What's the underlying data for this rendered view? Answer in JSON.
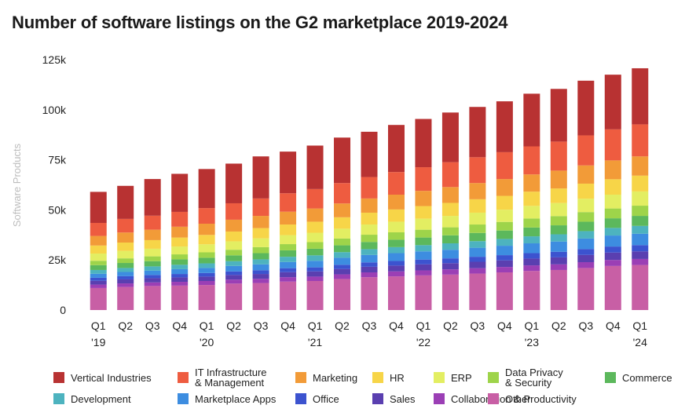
{
  "title": "Number of software listings on the G2 marketplace 2019-2024",
  "chart_data": {
    "type": "bar",
    "stacked": true,
    "ylabel": "Software Products",
    "ylim": [
      0,
      125000
    ],
    "yticks": [
      0,
      25000,
      50000,
      75000,
      100000,
      125000
    ],
    "ytick_labels": [
      "0",
      "25k",
      "50k",
      "75k",
      "100k",
      "125k"
    ],
    "grid": false,
    "legend_position": "bottom",
    "categories": [
      "Q1 '19",
      "Q2",
      "Q3",
      "Q4",
      "Q1 '20",
      "Q2",
      "Q3",
      "Q4",
      "Q1 '21",
      "Q2",
      "Q3",
      "Q4",
      "Q1 '22",
      "Q2",
      "Q3",
      "Q4",
      "Q1 '23",
      "Q2",
      "Q3",
      "Q4",
      "Q1 '24"
    ],
    "category_labels": [
      {
        "q": "Q1",
        "y": "'19"
      },
      {
        "q": "Q2",
        "y": ""
      },
      {
        "q": "Q3",
        "y": ""
      },
      {
        "q": "Q4",
        "y": ""
      },
      {
        "q": "Q1",
        "y": "'20"
      },
      {
        "q": "Q2",
        "y": ""
      },
      {
        "q": "Q3",
        "y": ""
      },
      {
        "q": "Q4",
        "y": ""
      },
      {
        "q": "Q1",
        "y": "'21"
      },
      {
        "q": "Q2",
        "y": ""
      },
      {
        "q": "Q3",
        "y": ""
      },
      {
        "q": "Q4",
        "y": ""
      },
      {
        "q": "Q1",
        "y": "'22"
      },
      {
        "q": "Q2",
        "y": ""
      },
      {
        "q": "Q3",
        "y": ""
      },
      {
        "q": "Q4",
        "y": ""
      },
      {
        "q": "Q1",
        "y": "'23"
      },
      {
        "q": "Q2",
        "y": ""
      },
      {
        "q": "Q3",
        "y": ""
      },
      {
        "q": "Q4",
        "y": ""
      },
      {
        "q": "Q1",
        "y": "'24"
      }
    ],
    "series": [
      {
        "name": "Other",
        "color": "#c85fa5",
        "values": [
          11000,
          11500,
          12000,
          12200,
          12500,
          13200,
          13500,
          14200,
          14500,
          15500,
          16400,
          16800,
          17300,
          17700,
          18200,
          18800,
          19500,
          20000,
          21000,
          22000,
          22500
        ]
      },
      {
        "name": "Collaboration & Productivity",
        "color": "#9b3fb5",
        "values": [
          1700,
          1800,
          1800,
          1900,
          2000,
          2000,
          2100,
          2200,
          2200,
          2300,
          2400,
          2500,
          2500,
          2600,
          2700,
          2700,
          2800,
          2800,
          2900,
          3000,
          3000
        ]
      },
      {
        "name": "Sales",
        "color": "#5a3fb0",
        "values": [
          1900,
          2000,
          2100,
          2200,
          2200,
          2300,
          2400,
          2500,
          2600,
          2700,
          2800,
          2900,
          3000,
          3100,
          3200,
          3300,
          3400,
          3500,
          3600,
          3700,
          3800
        ]
      },
      {
        "name": "Office",
        "color": "#3c53cf",
        "values": [
          1500,
          1600,
          1600,
          1700,
          1800,
          1800,
          1900,
          2000,
          2000,
          2100,
          2200,
          2300,
          2400,
          2400,
          2500,
          2600,
          2700,
          2800,
          2900,
          3000,
          3100
        ]
      },
      {
        "name": "Marketplace Apps",
        "color": "#3d8de0",
        "values": [
          2000,
          2100,
          2200,
          2400,
          2500,
          2700,
          2900,
          3100,
          3300,
          3500,
          3700,
          3900,
          4100,
          4300,
          4500,
          4700,
          4900,
          5100,
          5300,
          5500,
          5700
        ]
      },
      {
        "name": "Development",
        "color": "#4db3bf",
        "values": [
          1900,
          2000,
          2100,
          2200,
          2300,
          2400,
          2500,
          2600,
          2700,
          2800,
          2900,
          3000,
          3100,
          3200,
          3300,
          3400,
          3500,
          3600,
          3700,
          3800,
          3900
        ]
      },
      {
        "name": "Commerce",
        "color": "#5cb85c",
        "values": [
          2400,
          2500,
          2600,
          2700,
          2800,
          2900,
          3100,
          3200,
          3300,
          3400,
          3600,
          3700,
          3800,
          4000,
          4100,
          4200,
          4400,
          4500,
          4700,
          4800,
          5000
        ]
      },
      {
        "name": "Data Privacy\n& Security",
        "color": "#9ed44a",
        "values": [
          2200,
          2300,
          2400,
          2500,
          2700,
          2800,
          3000,
          3100,
          3300,
          3400,
          3600,
          3700,
          3900,
          4000,
          4200,
          4300,
          4500,
          4600,
          4800,
          4900,
          5100
        ]
      },
      {
        "name": "ERP",
        "color": "#e3ee62",
        "values": [
          3600,
          3700,
          3800,
          3900,
          4000,
          4200,
          4400,
          4500,
          4700,
          4900,
          5100,
          5300,
          5500,
          5700,
          5900,
          6100,
          6300,
          6500,
          6700,
          6900,
          7100
        ]
      },
      {
        "name": "HR",
        "color": "#f7d548",
        "values": [
          4000,
          4200,
          4300,
          4500,
          4700,
          4900,
          5100,
          5300,
          5500,
          5700,
          5900,
          6100,
          6300,
          6500,
          6700,
          6900,
          7100,
          7300,
          7500,
          7700,
          7900
        ]
      },
      {
        "name": "Marketing",
        "color": "#f29b38",
        "values": [
          4800,
          5000,
          5200,
          5400,
          5600,
          5900,
          6100,
          6400,
          6600,
          6900,
          7100,
          7400,
          7600,
          7900,
          8100,
          8400,
          8600,
          8900,
          9100,
          9400,
          9600
        ]
      },
      {
        "name": "IT Infrastructure\n& Management",
        "color": "#ee5c40",
        "values": [
          6500,
          6800,
          7000,
          7400,
          7800,
          8200,
          8700,
          9200,
          9700,
          10200,
          10700,
          11300,
          11800,
          12400,
          12900,
          13400,
          14000,
          14500,
          15000,
          15500,
          16000
        ]
      },
      {
        "name": "Vertical Industries",
        "color": "#b83232",
        "values": [
          15500,
          16500,
          18300,
          19000,
          19500,
          19800,
          21000,
          20800,
          21700,
          22700,
          22600,
          23500,
          24100,
          24800,
          25100,
          25400,
          26300,
          26300,
          27300,
          27300,
          28000
        ]
      }
    ]
  },
  "legend_order": [
    12,
    11,
    10,
    9,
    8,
    7,
    6,
    5,
    4,
    3,
    2,
    1,
    0
  ]
}
